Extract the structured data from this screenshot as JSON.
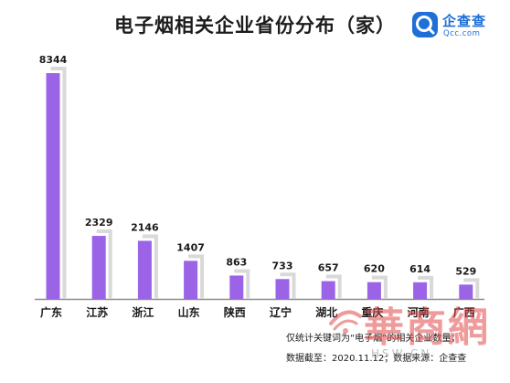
{
  "title": "电子烟相关企业省份分布（家）",
  "brand": {
    "name": "企查查",
    "url": "Qcc.com",
    "icon": "qcc-logo-icon",
    "color": "#1f6fd6"
  },
  "chart_data": {
    "type": "bar",
    "title": "电子烟相关企业省份分布（家）",
    "categories": [
      "广东",
      "江苏",
      "浙江",
      "山东",
      "陕西",
      "辽宁",
      "湖北",
      "重庆",
      "河南",
      "广西"
    ],
    "values": [
      8344,
      2329,
      2146,
      1407,
      863,
      733,
      657,
      620,
      614,
      529
    ],
    "ylim": [
      0,
      8344
    ],
    "grid": false,
    "legend": "none",
    "bar_color": "#9b63e6",
    "shadow_color": "#d9d9d9"
  },
  "footnotes": [
    "仅统计关键词为“电子烟”的相关企业数量；",
    "数据截至：2020.11.12；数据来源：企查查"
  ],
  "watermark": {
    "text": "華商網",
    "sub": "HSW.CN",
    "color": "#e24a4a"
  }
}
